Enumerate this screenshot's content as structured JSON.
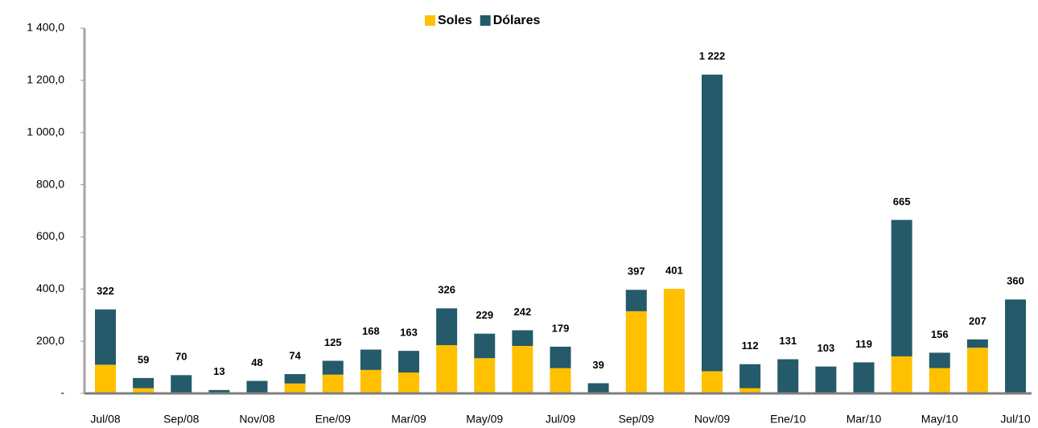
{
  "chart_data": {
    "type": "stacked-bar",
    "categories": [
      "Jul/08",
      null,
      "Sep/08",
      null,
      "Nov/08",
      null,
      "Ene/09",
      null,
      "Mar/09",
      null,
      "May/09",
      null,
      "Jul/09",
      null,
      "Sep/09",
      null,
      "Nov/09",
      null,
      "Ene/10",
      null,
      "Mar/10",
      null,
      "May/10",
      null,
      "Jul/10"
    ],
    "series": [
      {
        "name": "Soles",
        "color": "#ffc000",
        "values": [
          110,
          20,
          0,
          0,
          0,
          38,
          72,
          90,
          80,
          185,
          135,
          182,
          97,
          0,
          315,
          401,
          85,
          20,
          0,
          0,
          0,
          142,
          97,
          175,
          0
        ]
      },
      {
        "name": "Dólares",
        "color": "#245a69",
        "values": [
          212,
          39,
          70,
          13,
          48,
          36,
          53,
          78,
          83,
          141,
          94,
          60,
          82,
          39,
          82,
          0,
          1137,
          92,
          131,
          103,
          119,
          523,
          59,
          32,
          360
        ]
      }
    ],
    "totals": {
      "values": [
        322,
        59,
        70,
        13,
        48,
        74,
        125,
        168,
        163,
        326,
        229,
        242,
        179,
        39,
        397,
        401,
        1222,
        112,
        131,
        103,
        119,
        665,
        156,
        207,
        360
      ],
      "value_labels": [
        "322",
        "59",
        "70",
        "13",
        "48",
        "74",
        "125",
        "168",
        "163",
        "326",
        "229",
        "242",
        "179",
        "39",
        "397",
        "401",
        "1 222",
        "112",
        "131",
        "103",
        "119",
        "665",
        "156",
        "207",
        "360"
      ]
    },
    "ylim": [
      0,
      1400
    ],
    "yticks": [
      {
        "value": 0,
        "label": "-"
      },
      {
        "value": 200,
        "label": "200,0"
      },
      {
        "value": 400,
        "label": "400,0"
      },
      {
        "value": 600,
        "label": "600,0"
      },
      {
        "value": 800,
        "label": "800,0"
      },
      {
        "value": 1000,
        "label": "1 000,0"
      },
      {
        "value": 1200,
        "label": "1 200,0"
      },
      {
        "value": 1400,
        "label": "1 400,0"
      }
    ],
    "legend": "top"
  }
}
